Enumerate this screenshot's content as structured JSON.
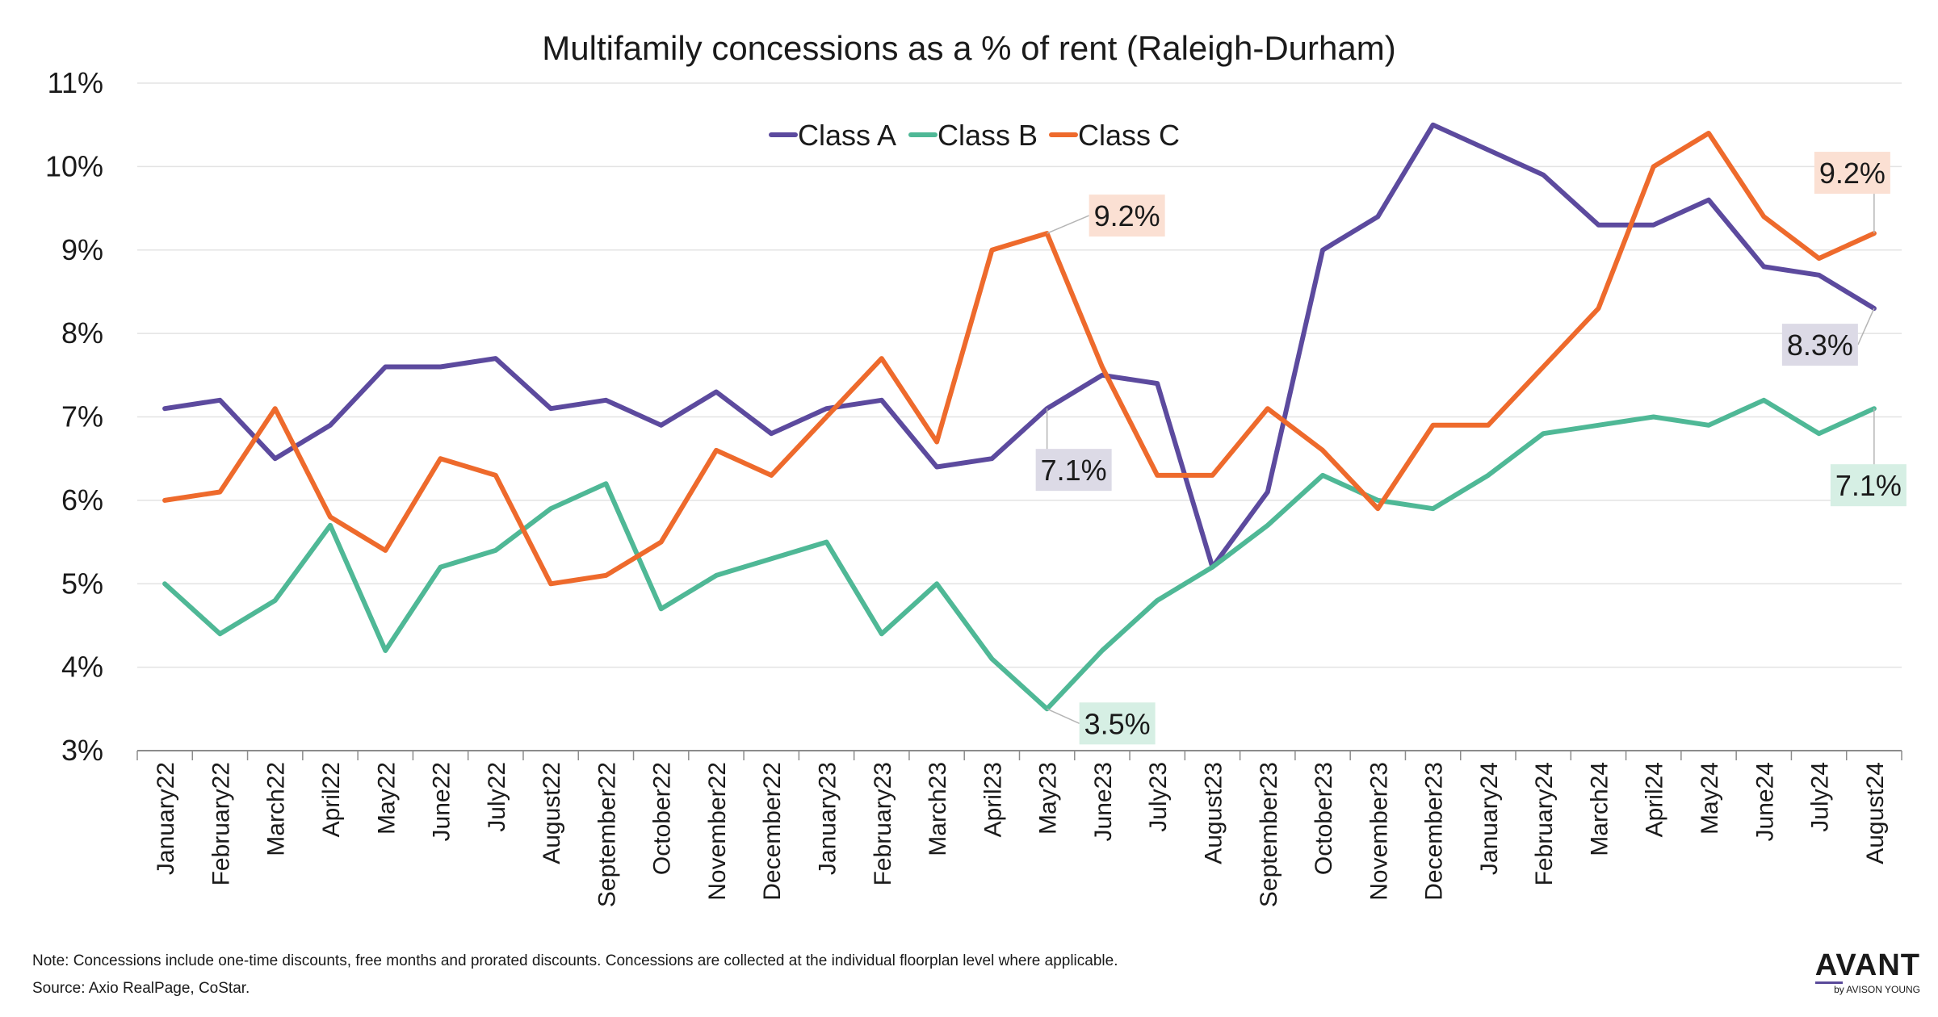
{
  "chart_data": {
    "type": "line",
    "title": "Multifamily concessions as a % of rent (Raleigh-Durham)",
    "xlabel": "",
    "ylabel": "",
    "ylim": [
      3,
      11
    ],
    "y_ticks": [
      "3%",
      "4%",
      "5%",
      "6%",
      "7%",
      "8%",
      "9%",
      "10%",
      "11%"
    ],
    "grid": "horizontal",
    "legend_position": "top-center",
    "categories": [
      "January22",
      "February22",
      "March22",
      "April22",
      "May22",
      "June22",
      "July22",
      "August22",
      "September22",
      "October22",
      "November22",
      "December22",
      "January23",
      "February23",
      "March23",
      "April23",
      "May23",
      "June23",
      "July23",
      "August23",
      "September23",
      "October23",
      "November23",
      "December23",
      "January24",
      "February24",
      "March24",
      "April24",
      "May24",
      "June24",
      "July24",
      "August24"
    ],
    "series": [
      {
        "name": "Class A",
        "color": "#5c4a9e",
        "values": [
          7.1,
          7.2,
          6.5,
          6.9,
          7.6,
          7.6,
          7.7,
          7.1,
          7.2,
          6.9,
          7.3,
          6.8,
          7.1,
          7.2,
          6.4,
          6.5,
          7.1,
          7.5,
          7.4,
          5.2,
          6.1,
          9.0,
          9.4,
          10.5,
          10.2,
          9.9,
          9.3,
          9.3,
          9.6,
          8.8,
          8.7,
          8.3
        ]
      },
      {
        "name": "Class B",
        "color": "#4fb896",
        "values": [
          5.0,
          4.4,
          4.8,
          5.7,
          4.2,
          5.2,
          5.4,
          5.9,
          6.2,
          4.7,
          5.1,
          5.3,
          5.5,
          4.4,
          5.0,
          4.1,
          3.5,
          4.2,
          4.8,
          5.2,
          5.7,
          6.3,
          6.0,
          5.9,
          6.3,
          6.8,
          6.9,
          7.0,
          6.9,
          7.2,
          6.8,
          7.1
        ]
      },
      {
        "name": "Class  C",
        "color": "#ee6a2c",
        "values": [
          6.0,
          6.1,
          7.1,
          5.8,
          5.4,
          6.5,
          6.3,
          5.0,
          5.1,
          5.5,
          6.6,
          6.3,
          7.0,
          7.7,
          6.7,
          9.0,
          9.2,
          7.6,
          6.3,
          6.3,
          7.1,
          6.6,
          5.9,
          6.9,
          6.9,
          7.6,
          8.3,
          10.0,
          10.4,
          9.4,
          8.9,
          9.2
        ]
      }
    ],
    "annotations": [
      {
        "text": "9.2%",
        "series": 2,
        "category": "May23",
        "bg": "#fbe0d3"
      },
      {
        "text": "7.1%",
        "series": 0,
        "category": "May23",
        "bg": "#dcdae6"
      },
      {
        "text": "3.5%",
        "series": 1,
        "category": "May23",
        "bg": "#d6efe4"
      },
      {
        "text": "9.2%",
        "series": 2,
        "category": "August24",
        "bg": "#fbe0d3"
      },
      {
        "text": "8.3%",
        "series": 0,
        "category": "August24",
        "bg": "#dcdae6"
      },
      {
        "text": "7.1%",
        "series": 1,
        "category": "August24",
        "bg": "#d6efe4"
      }
    ]
  },
  "footer": {
    "note": "Note: Concessions include one-time discounts, free months and prorated discounts. Concessions are collected at the individual floorplan level where applicable.",
    "source": "Source:  Axio RealPage, CoStar."
  },
  "brand": {
    "name": "AVANT",
    "sub": "by AVISON YOUNG"
  }
}
